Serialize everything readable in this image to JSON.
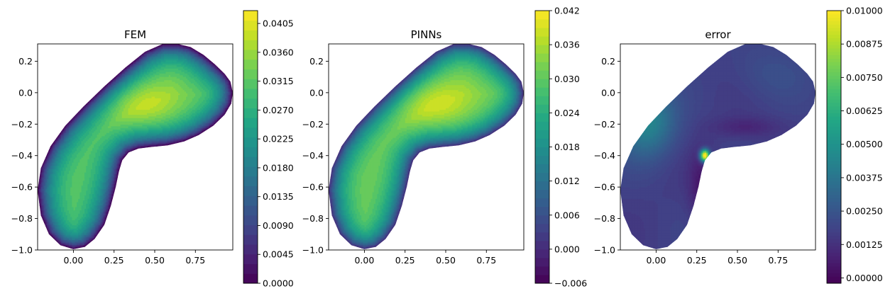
{
  "chart_data": [
    {
      "type": "heatmap",
      "title": "FEM",
      "xlabel": "",
      "ylabel": "",
      "xlim": [
        -0.22,
        0.98
      ],
      "ylim": [
        -1.0,
        0.31
      ],
      "xticks": [
        "0.00",
        "0.25",
        "0.50",
        "0.75"
      ],
      "yticks": [
        "0.2",
        "0.0",
        "−0.2",
        "−0.4",
        "−0.6",
        "−0.8",
        "−1.0"
      ],
      "xtick_values": [
        0.0,
        0.25,
        0.5,
        0.75
      ],
      "ytick_values": [
        0.2,
        0.0,
        -0.2,
        -0.4,
        -0.6,
        -0.8,
        -1.0
      ],
      "field": "bump",
      "colorbar": {
        "min": 0.0,
        "max": 0.0425,
        "levels": 28,
        "ticks": [
          "0.0000",
          "0.0045",
          "0.0090",
          "0.0135",
          "0.0180",
          "0.0225",
          "0.0270",
          "0.0315",
          "0.0360",
          "0.0405"
        ],
        "tick_values": [
          0.0,
          0.0045,
          0.009,
          0.0135,
          0.018,
          0.0225,
          0.027,
          0.0315,
          0.036,
          0.0405
        ]
      }
    },
    {
      "type": "heatmap",
      "title": "PINNs",
      "xlabel": "",
      "ylabel": "",
      "xlim": [
        -0.22,
        0.98
      ],
      "ylim": [
        -1.0,
        0.31
      ],
      "xticks": [
        "0.00",
        "0.25",
        "0.50",
        "0.75"
      ],
      "yticks": [
        "0.2",
        "0.0",
        "−0.2",
        "−0.4",
        "−0.6",
        "−0.8",
        "−1.0"
      ],
      "xtick_values": [
        0.0,
        0.25,
        0.5,
        0.75
      ],
      "ytick_values": [
        0.2,
        0.0,
        -0.2,
        -0.4,
        -0.6,
        -0.8,
        -1.0
      ],
      "field": "bump",
      "colorbar": {
        "min": -0.006,
        "max": 0.042,
        "levels": 32,
        "ticks": [
          "−0.006",
          "0.000",
          "0.006",
          "0.012",
          "0.018",
          "0.024",
          "0.030",
          "0.036",
          "0.042"
        ],
        "tick_values": [
          -0.006,
          0.0,
          0.006,
          0.012,
          0.018,
          0.024,
          0.03,
          0.036,
          0.042
        ]
      }
    },
    {
      "type": "heatmap",
      "title": "error",
      "xlabel": "",
      "ylabel": "",
      "xlim": [
        -0.22,
        0.98
      ],
      "ylim": [
        -1.0,
        0.31
      ],
      "xticks": [
        "0.00",
        "0.25",
        "0.50",
        "0.75"
      ],
      "yticks": [
        "0.2",
        "0.0",
        "−0.2",
        "−0.4",
        "−0.6",
        "−0.8",
        "−1.0"
      ],
      "xtick_values": [
        0.0,
        0.25,
        0.5,
        0.75
      ],
      "ytick_values": [
        0.2,
        0.0,
        -0.2,
        -0.4,
        -0.6,
        -0.8,
        -1.0
      ],
      "field": "error",
      "colorbar": {
        "min": -0.0002,
        "max": 0.01,
        "levels": 80,
        "ticks": [
          "0.00000",
          "0.00125",
          "0.00250",
          "0.00375",
          "0.00500",
          "0.00625",
          "0.00750",
          "0.00875",
          "0.01000"
        ],
        "tick_values": [
          0.0,
          0.00125,
          0.0025,
          0.00375,
          0.005,
          0.00625,
          0.0075,
          0.00875,
          0.01
        ]
      }
    }
  ],
  "colormap": "viridis"
}
